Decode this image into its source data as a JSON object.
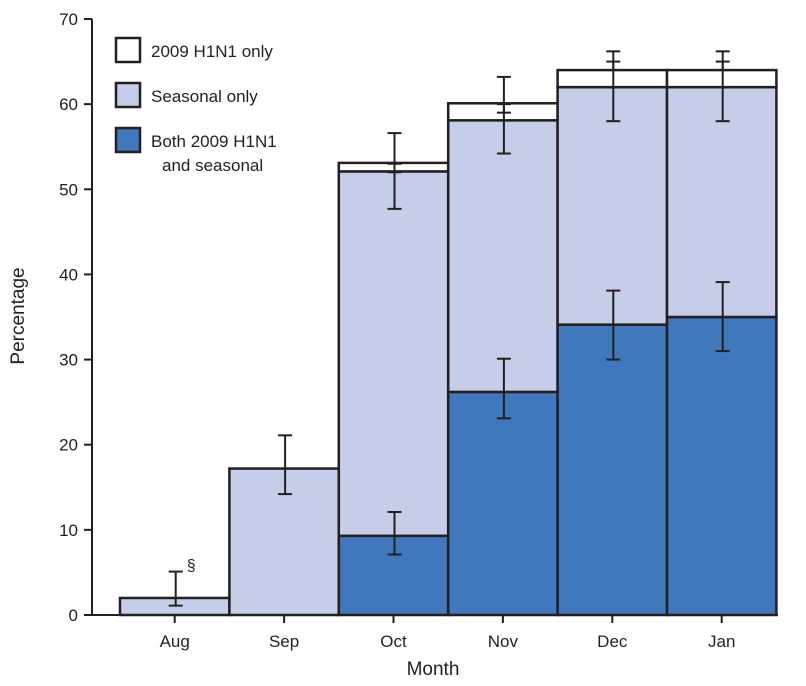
{
  "chart_data": {
    "type": "bar",
    "stacked": true,
    "categories": [
      "Aug",
      "Sep",
      "Oct",
      "Nov",
      "Dec",
      "Jan"
    ],
    "xlabel": "Month",
    "ylabel": "Percentage",
    "ylim": [
      0,
      70
    ],
    "yticks": [
      0,
      10,
      20,
      30,
      40,
      50,
      60,
      70
    ],
    "legend_position": "top-left",
    "series": [
      {
        "name": "Both 2009 H1N1 and seasonal",
        "legend_lines": [
          "Both 2009 H1N1",
          "and seasonal"
        ],
        "color": "#3f78bd",
        "values": [
          0,
          0,
          9.3,
          26.2,
          34.1,
          35.0
        ],
        "error_low": [
          null,
          null,
          7.1,
          23.1,
          30.0,
          31.0
        ],
        "error_high": [
          null,
          null,
          12.1,
          30.1,
          38.1,
          39.1
        ]
      },
      {
        "name": "Seasonal only",
        "legend_lines": [
          "Seasonal only"
        ],
        "color": "#c5cde8",
        "values": [
          2.0,
          17.2,
          42.8,
          31.9,
          27.9,
          27.0
        ],
        "error_low": [
          1.1,
          14.2,
          47.7,
          54.2,
          58.0,
          58.0
        ],
        "error_high": [
          5.1,
          21.1,
          56.6,
          63.2,
          66.2,
          66.2
        ]
      },
      {
        "name": "2009 H1N1 only",
        "legend_lines": [
          "2009 H1N1 only"
        ],
        "color": "#ffffff",
        "values": [
          0,
          0,
          1.0,
          2.0,
          2.0,
          2.0
        ],
        "error_low": [
          null,
          null,
          52.0,
          59.0,
          64.0,
          64.0
        ],
        "error_high": [
          null,
          null,
          53.0,
          60.0,
          65.0,
          65.0
        ]
      }
    ],
    "annotations": [
      {
        "text": "§",
        "category": "Aug",
        "y": 5.2
      }
    ]
  }
}
